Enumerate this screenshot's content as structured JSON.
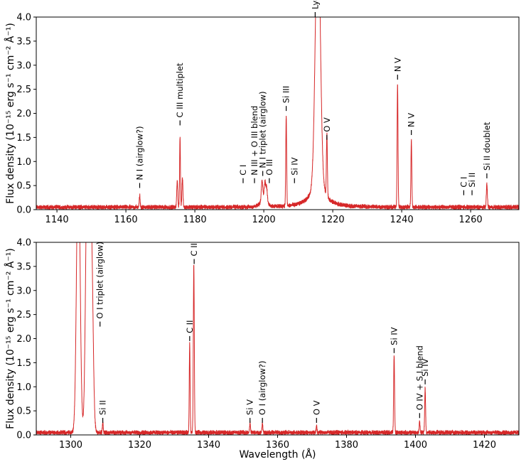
{
  "colors": {
    "series": "#d62728",
    "axes": "#000000",
    "background": "#ffffff"
  },
  "chart_data": [
    {
      "type": "line",
      "xlim": [
        1134,
        1274
      ],
      "ylim": [
        0,
        4.0
      ],
      "xticks": [
        1140,
        1160,
        1180,
        1200,
        1220,
        1240,
        1260
      ],
      "yticks": [
        0.0,
        0.5,
        1.0,
        1.5,
        2.0,
        2.5,
        3.0,
        3.5,
        4.0
      ],
      "ytick_labels": [
        "0.0",
        "0.5",
        "1.0",
        "1.5",
        "2.0",
        "2.5",
        "3.0",
        "3.5",
        "4.0"
      ],
      "xlabel": "",
      "ylabel": "Flux density (10⁻¹⁵ erg s⁻¹ cm⁻² Å⁻¹)",
      "continuum": 0.05,
      "broad_features": [
        {
          "center": 1215.67,
          "height": 0.55,
          "width": 2.2,
          "shape": "lorentzian"
        },
        {
          "center": 1200.0,
          "height": 0.12,
          "width": 1.1,
          "shape": "gaussian"
        }
      ],
      "lines": [
        {
          "center": 1164.0,
          "peak": 0.25,
          "width": 0.12
        },
        {
          "center": 1174.9,
          "peak": 0.55,
          "width": 0.15
        },
        {
          "center": 1175.7,
          "peak": 1.45,
          "width": 0.12
        },
        {
          "center": 1176.4,
          "peak": 0.6,
          "width": 0.15
        },
        {
          "center": 1199.5,
          "peak": 0.45,
          "width": 0.22
        },
        {
          "center": 1200.3,
          "peak": 0.38,
          "width": 0.22
        },
        {
          "center": 1200.8,
          "peak": 0.3,
          "width": 0.22
        },
        {
          "center": 1206.5,
          "peak": 1.85,
          "width": 0.13
        },
        {
          "center": 1215.67,
          "peak": 5.5,
          "width": 0.7
        },
        {
          "center": 1218.3,
          "peak": 1.3,
          "width": 0.14
        },
        {
          "center": 1238.8,
          "peak": 2.55,
          "width": 0.13
        },
        {
          "center": 1242.8,
          "peak": 1.38,
          "width": 0.13
        },
        {
          "center": 1264.7,
          "peak": 0.48,
          "width": 0.15
        }
      ],
      "annotations": [
        {
          "x": 1164.0,
          "y": 0.45,
          "text": "N I (airglow?)"
        },
        {
          "x": 1175.7,
          "y": 1.75,
          "text": "C III multiplet"
        },
        {
          "x": 1194.0,
          "y": 0.55,
          "text": "C I"
        },
        {
          "x": 1197.3,
          "y": 0.55,
          "text": "N III + O III blend"
        },
        {
          "x": 1199.7,
          "y": 0.7,
          "text": "N I triplet (airglow)"
        },
        {
          "x": 1201.6,
          "y": 0.55,
          "text": "O III"
        },
        {
          "x": 1206.5,
          "y": 2.05,
          "text": "Si III"
        },
        {
          "x": 1208.9,
          "y": 0.55,
          "text": "Si IV"
        },
        {
          "x": 1214.9,
          "y": 4.0,
          "text": "Lyα (mostly airglow)"
        },
        {
          "x": 1218.3,
          "y": 1.45,
          "text": "O V"
        },
        {
          "x": 1238.8,
          "y": 2.7,
          "text": "N V"
        },
        {
          "x": 1242.8,
          "y": 1.55,
          "text": "N V"
        },
        {
          "x": 1258.0,
          "y": 0.3,
          "text": "C I"
        },
        {
          "x": 1260.4,
          "y": 0.3,
          "text": "Si II"
        },
        {
          "x": 1264.7,
          "y": 0.65,
          "text": "Si II doublet"
        }
      ]
    },
    {
      "type": "line",
      "xlim": [
        1290,
        1430
      ],
      "ylim": [
        0,
        4.0
      ],
      "xticks": [
        1300,
        1320,
        1340,
        1360,
        1380,
        1400,
        1420
      ],
      "yticks": [
        0.0,
        0.5,
        1.0,
        1.5,
        2.0,
        2.5,
        3.0,
        3.5,
        4.0
      ],
      "ytick_labels": [
        "0.0",
        "0.5",
        "1.0",
        "1.5",
        "2.0",
        "2.5",
        "3.0",
        "3.5",
        "4.0"
      ],
      "xlabel": "Wavelength (Å)",
      "ylabel": "Flux density (10⁻¹⁵ erg s⁻¹ cm⁻² Å⁻¹)",
      "continuum": 0.05,
      "broad_features": [],
      "lines": [
        {
          "center": 1302.2,
          "peak": 6.0,
          "width": 0.5
        },
        {
          "center": 1304.86,
          "peak": 6.0,
          "width": 0.5
        },
        {
          "center": 1306.03,
          "peak": 3.8,
          "width": 0.45
        },
        {
          "center": 1309.3,
          "peak": 0.22,
          "width": 0.12
        },
        {
          "center": 1334.5,
          "peak": 1.85,
          "width": 0.12
        },
        {
          "center": 1335.7,
          "peak": 3.48,
          "width": 0.14
        },
        {
          "center": 1352.0,
          "peak": 0.2,
          "width": 0.12
        },
        {
          "center": 1355.6,
          "peak": 0.2,
          "width": 0.12
        },
        {
          "center": 1371.3,
          "peak": 0.15,
          "width": 0.12
        },
        {
          "center": 1393.8,
          "peak": 1.62,
          "width": 0.13
        },
        {
          "center": 1401.2,
          "peak": 0.25,
          "width": 0.12
        },
        {
          "center": 1402.8,
          "peak": 0.92,
          "width": 0.13
        }
      ],
      "annotations": [
        {
          "x": 1308.5,
          "y": 2.25,
          "text": "O I triplet (airglow)"
        },
        {
          "x": 1309.3,
          "y": 0.25,
          "text": "Si II"
        },
        {
          "x": 1334.5,
          "y": 1.95,
          "text": "C II"
        },
        {
          "x": 1335.8,
          "y": 3.55,
          "text": "C II"
        },
        {
          "x": 1352.0,
          "y": 0.25,
          "text": "Si V"
        },
        {
          "x": 1355.6,
          "y": 0.25,
          "text": "O I (airglow?)"
        },
        {
          "x": 1371.3,
          "y": 0.25,
          "text": "O V"
        },
        {
          "x": 1393.8,
          "y": 1.7,
          "text": "Si IV"
        },
        {
          "x": 1401.2,
          "y": 0.35,
          "text": "O IV + S I blend"
        },
        {
          "x": 1402.8,
          "y": 1.05,
          "text": "Si IV"
        }
      ]
    }
  ]
}
